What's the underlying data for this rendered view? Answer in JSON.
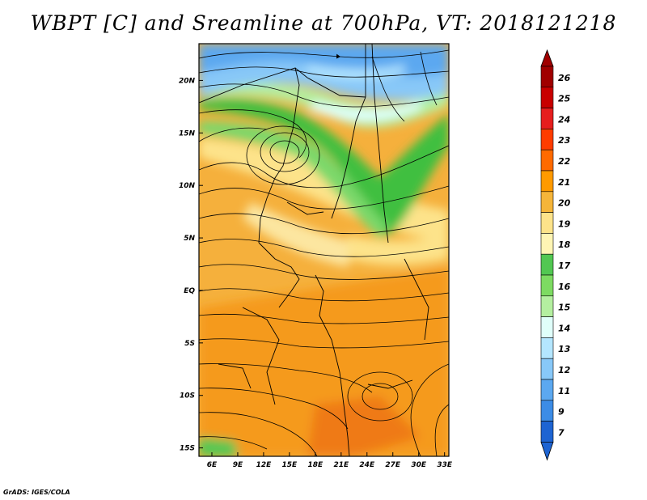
{
  "title": "WBPT [C] and Sreamline at 700hPa, VT: 2018121218",
  "credit": "GrADS: IGES/COLA",
  "chart_data": {
    "type": "heatmap",
    "title": "WBPT [C] and Sreamline at 700hPa, VT: 2018121218",
    "variable": "Wet-bulb potential temperature [C] with 700hPa streamlines",
    "x_ticks": [
      "6E",
      "9E",
      "12E",
      "15E",
      "18E",
      "21E",
      "24E",
      "27E",
      "30E",
      "33E"
    ],
    "y_ticks": [
      "20N",
      "15N",
      "10N",
      "5N",
      "EQ",
      "5S",
      "10S",
      "15S"
    ],
    "lon_range": [
      4.5,
      33.5
    ],
    "lat_range": [
      -15.8,
      23.5
    ],
    "colorbar": {
      "labels": [
        "26",
        "25",
        "24",
        "23",
        "22",
        "21",
        "20",
        "19",
        "18",
        "17",
        "16",
        "15",
        "14",
        "13",
        "12",
        "11",
        "9",
        "7"
      ],
      "colors": [
        "#a00000",
        "#c80000",
        "#e61e1e",
        "#ff3c00",
        "#ff6a00",
        "#ff9a00",
        "#f5b53a",
        "#fde38a",
        "#fff5b4",
        "#52c752",
        "#7ddb62",
        "#b4efa0",
        "#e0fffa",
        "#b4e6ff",
        "#88c8f8",
        "#5ca8f0",
        "#3c8ce6",
        "#1e64d2"
      ]
    }
  }
}
